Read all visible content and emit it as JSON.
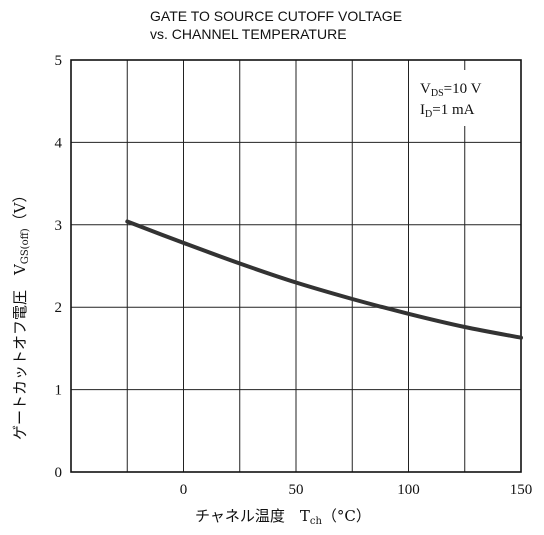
{
  "chart_data": {
    "type": "line",
    "title_line1": "GATE TO SOURCE CUTOFF VOLTAGE",
    "title_line2": "vs. CHANNEL TEMPERATURE",
    "xlabel_main": "チャネル温度　T",
    "xlabel_sub": "ch",
    "xlabel_unit": "（°C）",
    "ylabel_main": "ゲートカットオフ電圧　V",
    "ylabel_sub": "GS(off)",
    "ylabel_unit": "（V）",
    "xlim": [
      -50,
      150
    ],
    "ylim": [
      0,
      5
    ],
    "x_ticks": [
      0,
      50,
      100,
      150
    ],
    "y_ticks": [
      0,
      1,
      2,
      3,
      4,
      5
    ],
    "x_grid_step": 25,
    "y_grid_step": 1,
    "grid": true,
    "annotations": [
      {
        "main": "V",
        "sub": "DS",
        "rest": "=10 V"
      },
      {
        "main": "I",
        "sub": "D",
        "rest": "=1 mA"
      }
    ],
    "series": [
      {
        "x": [
          -25,
          0,
          25,
          50,
          75,
          100,
          125,
          150
        ],
        "y": [
          3.04,
          2.78,
          2.53,
          2.3,
          2.1,
          1.92,
          1.76,
          1.63
        ]
      }
    ]
  }
}
